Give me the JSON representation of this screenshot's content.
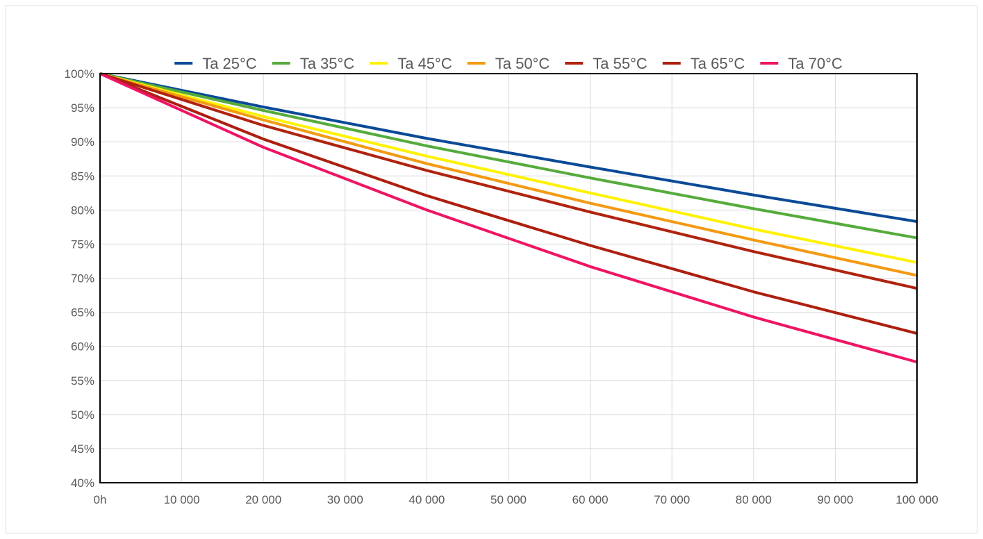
{
  "chart_data": {
    "type": "line",
    "title": "",
    "xlabel": "",
    "ylabel": "",
    "x": [
      0,
      20000,
      40000,
      60000,
      80000,
      100000
    ],
    "xlim": [
      0,
      100000
    ],
    "ylim": [
      40,
      100
    ],
    "x_ticks": [
      {
        "value": 0,
        "label": "0h"
      },
      {
        "value": 10000,
        "label": "10 000"
      },
      {
        "value": 20000,
        "label": "20 000"
      },
      {
        "value": 30000,
        "label": "30 000"
      },
      {
        "value": 40000,
        "label": "40 000"
      },
      {
        "value": 50000,
        "label": "50 000"
      },
      {
        "value": 60000,
        "label": "60 000"
      },
      {
        "value": 70000,
        "label": "70 000"
      },
      {
        "value": 80000,
        "label": "80 000"
      },
      {
        "value": 90000,
        "label": "90 000"
      },
      {
        "value": 100000,
        "label": "100 000"
      }
    ],
    "y_ticks": [
      {
        "value": 40,
        "label": "40%"
      },
      {
        "value": 45,
        "label": "45%"
      },
      {
        "value": 50,
        "label": "50%"
      },
      {
        "value": 55,
        "label": "55%"
      },
      {
        "value": 60,
        "label": "60%"
      },
      {
        "value": 65,
        "label": "65%"
      },
      {
        "value": 70,
        "label": "70%"
      },
      {
        "value": 75,
        "label": "75%"
      },
      {
        "value": 80,
        "label": "80%"
      },
      {
        "value": 85,
        "label": "85%"
      },
      {
        "value": 90,
        "label": "90%"
      },
      {
        "value": 95,
        "label": "95%"
      },
      {
        "value": 100,
        "label": "100%"
      }
    ],
    "grid": true,
    "legend_position": "top",
    "series": [
      {
        "name": "Ta 25°C",
        "color": "#0b4a96",
        "values": [
          100,
          95.1,
          90.5,
          86.3,
          82.2,
          78.3
        ]
      },
      {
        "name": "Ta 35°C",
        "color": "#55ab3c",
        "values": [
          100,
          94.6,
          89.4,
          84.7,
          80.2,
          75.9
        ]
      },
      {
        "name": "Ta 45°C",
        "color": "#fff200",
        "values": [
          100,
          93.7,
          87.9,
          82.5,
          77.2,
          72.3
        ]
      },
      {
        "name": "Ta 50°C",
        "color": "#f39a12",
        "values": [
          100,
          93.2,
          86.8,
          81.0,
          75.6,
          70.4
        ]
      },
      {
        "name": "Ta 55°C",
        "color": "#b0230f",
        "values": [
          100,
          92.4,
          85.8,
          79.7,
          73.9,
          68.5
        ]
      },
      {
        "name": "Ta 65°C",
        "color": "#ad1f10",
        "values": [
          100,
          90.4,
          82.1,
          74.8,
          68.0,
          61.9
        ]
      },
      {
        "name": "Ta 70°C",
        "color": "#ef1464",
        "values": [
          100,
          89.2,
          80.0,
          71.7,
          64.3,
          57.7
        ]
      }
    ]
  }
}
